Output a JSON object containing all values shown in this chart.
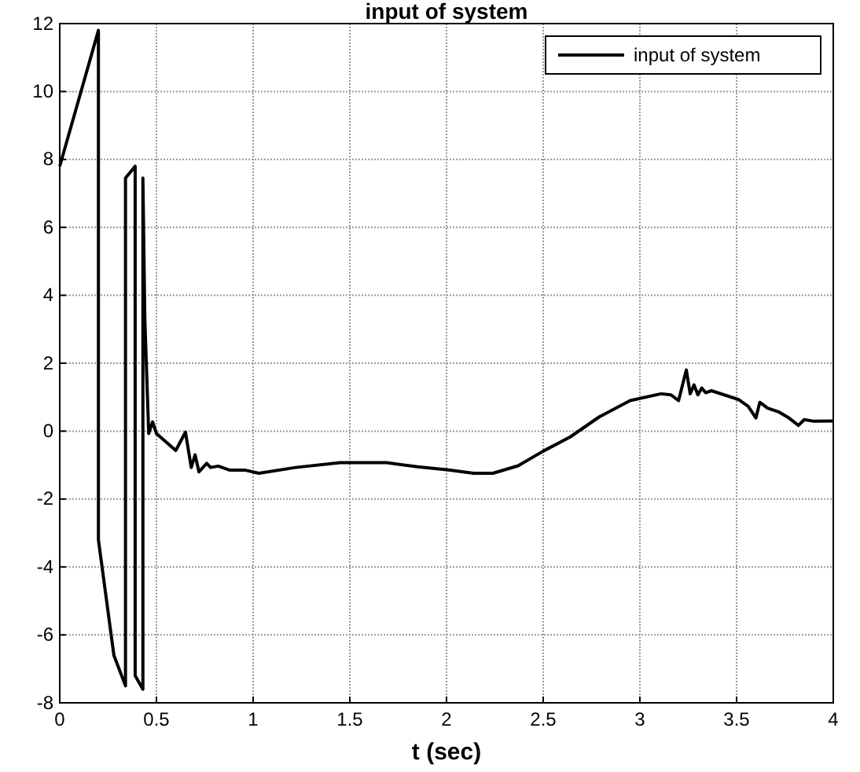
{
  "chart_data": {
    "type": "line",
    "title": "input of system",
    "xlabel": "t (sec)",
    "xlim": [
      0,
      4
    ],
    "xticks": [
      0,
      0.5,
      1,
      1.5,
      2,
      2.5,
      3,
      3.5,
      4
    ],
    "ylim": [
      -8,
      12
    ],
    "yticks": [
      -8,
      -6,
      -4,
      -2,
      0,
      2,
      4,
      6,
      8,
      10,
      12
    ],
    "grid": true,
    "legend": "top right",
    "line_style": "solid",
    "marker": "none",
    "series": [
      {
        "name": "input of system",
        "color": "#000000",
        "x": [
          0,
          0.2,
          0.2,
          0.28,
          0.34,
          0.34,
          0.39,
          0.39,
          0.43,
          0.43,
          0.44,
          0.46,
          0.48,
          0.5,
          0.6,
          0.65,
          0.68,
          0.7,
          0.72,
          0.76,
          0.78,
          0.82,
          0.88,
          0.96,
          1.03,
          1.22,
          1.45,
          1.69,
          1.85,
          2.01,
          2.14,
          2.24,
          2.37,
          2.5,
          2.64,
          2.79,
          2.95,
          3.11,
          3.16,
          3.2,
          3.24,
          3.26,
          3.28,
          3.3,
          3.32,
          3.34,
          3.37,
          3.51,
          3.56,
          3.6,
          3.62,
          3.66,
          3.72,
          3.77,
          3.82,
          3.85,
          3.9,
          4
        ],
        "values": [
          7.8,
          11.8,
          -3.2,
          -6.6,
          -7.5,
          7.45,
          7.8,
          -7.2,
          -7.6,
          7.45,
          3.3,
          -0.07,
          0.27,
          -0.07,
          -0.57,
          -0.03,
          -1.07,
          -0.7,
          -1.2,
          -0.95,
          -1.07,
          -1.03,
          -1.15,
          -1.15,
          -1.24,
          -1.07,
          -0.93,
          -0.93,
          -1.05,
          -1.14,
          -1.24,
          -1.24,
          -1.02,
          -0.59,
          -0.17,
          0.42,
          0.9,
          1.1,
          1.07,
          0.9,
          1.8,
          1.1,
          1.36,
          1.07,
          1.27,
          1.13,
          1.19,
          0.93,
          0.73,
          0.39,
          0.85,
          0.68,
          0.56,
          0.39,
          0.17,
          0.34,
          0.29,
          0.3
        ]
      }
    ]
  }
}
